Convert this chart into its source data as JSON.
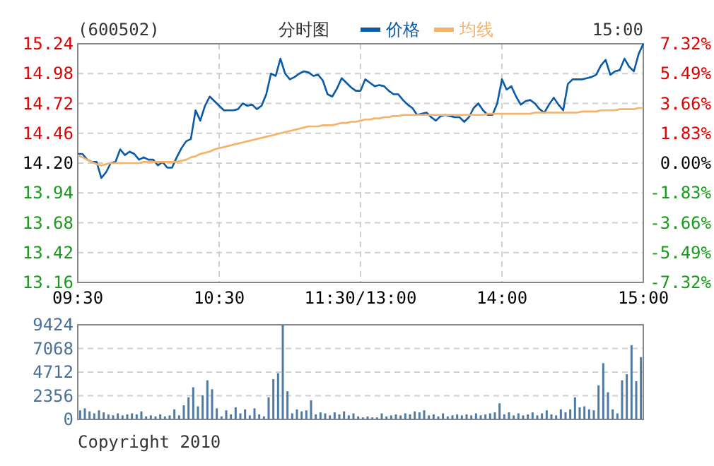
{
  "chart_data": [
    {
      "type": "line",
      "title": "(600502)",
      "subtitle": "分时图",
      "annotations": [
        "15:00"
      ],
      "legend": "top",
      "grid": true,
      "categories": [
        "09:30",
        null,
        null,
        null,
        null,
        null,
        null,
        null,
        null,
        null,
        null,
        null,
        null,
        null,
        null,
        null,
        null,
        null,
        null,
        null,
        null,
        null,
        null,
        null,
        null,
        null,
        null,
        null,
        null,
        null,
        "10:30",
        null,
        null,
        null,
        null,
        null,
        null,
        null,
        null,
        null,
        null,
        null,
        null,
        null,
        null,
        null,
        null,
        null,
        null,
        null,
        null,
        null,
        null,
        null,
        null,
        null,
        null,
        null,
        null,
        null,
        "11:30/13:00",
        null,
        null,
        null,
        null,
        null,
        null,
        null,
        null,
        null,
        null,
        null,
        null,
        null,
        null,
        null,
        null,
        null,
        null,
        null,
        null,
        null,
        null,
        null,
        null,
        null,
        null,
        null,
        null,
        null,
        "14:00",
        null,
        null,
        null,
        null,
        null,
        null,
        null,
        null,
        null,
        null,
        null,
        null,
        null,
        null,
        null,
        null,
        null,
        null,
        null,
        null,
        null,
        null,
        null,
        null,
        null,
        null,
        null,
        null,
        null,
        "15:00"
      ],
      "ylim": [
        13.16,
        15.24
      ],
      "yticks": [
        15.24,
        14.98,
        14.72,
        14.46,
        {
          "value": 14.2,
          "label": "14.20"
        },
        13.94,
        13.68,
        13.42,
        13.16
      ],
      "y2lim": [
        -7.32,
        7.32
      ],
      "y2ticks": [
        {
          "value": 7.32,
          "label": "7.32%"
        },
        {
          "value": 5.49,
          "label": "5.49%"
        },
        {
          "value": 3.66,
          "label": "3.66%"
        },
        {
          "value": 1.83,
          "label": "1.83%"
        },
        {
          "value": 0,
          "label": "0.00%"
        },
        {
          "value": -1.83,
          "label": "-1.83%"
        },
        {
          "value": -3.66,
          "label": "-3.66%"
        },
        {
          "value": -5.49,
          "label": "-5.49%"
        },
        {
          "value": -7.32,
          "label": "-7.32%"
        }
      ],
      "series": [
        {
          "name": "价格",
          "color": "#0a5aa8",
          "values": [
            14.28,
            14.28,
            14.23,
            14.21,
            14.21,
            14.07,
            14.12,
            14.2,
            14.21,
            14.32,
            14.27,
            14.3,
            14.28,
            14.23,
            14.25,
            14.23,
            14.23,
            14.18,
            14.21,
            14.16,
            14.16,
            14.25,
            14.33,
            14.39,
            14.41,
            14.66,
            14.57,
            14.7,
            14.78,
            14.74,
            14.7,
            14.66,
            14.66,
            14.66,
            14.67,
            14.72,
            14.7,
            14.71,
            14.67,
            14.7,
            14.8,
            14.98,
            14.96,
            15.11,
            14.98,
            14.93,
            14.95,
            14.98,
            15.0,
            14.99,
            14.96,
            14.97,
            14.92,
            14.8,
            14.78,
            14.85,
            14.94,
            14.9,
            14.86,
            14.83,
            14.83,
            14.93,
            14.9,
            14.87,
            14.88,
            14.87,
            14.83,
            14.8,
            14.8,
            14.75,
            14.71,
            14.68,
            14.62,
            14.63,
            14.64,
            14.6,
            14.57,
            14.61,
            14.62,
            14.61,
            14.6,
            14.6,
            14.56,
            14.6,
            14.68,
            14.72,
            14.66,
            14.62,
            14.62,
            14.72,
            14.93,
            14.84,
            14.87,
            14.78,
            14.71,
            14.74,
            14.75,
            14.72,
            14.67,
            14.64,
            14.71,
            14.77,
            14.71,
            14.66,
            14.89,
            14.93,
            14.93,
            14.93,
            14.94,
            14.95,
            14.97,
            15.05,
            15.1,
            14.97,
            15.0,
            15.01,
            15.11,
            15.04,
            15.0,
            15.15,
            15.24
          ]
        },
        {
          "name": "均线",
          "color": "#f5b26b",
          "values": [
            14.27,
            14.25,
            14.23,
            14.21,
            14.19,
            14.18,
            14.19,
            14.2,
            14.2,
            14.2,
            14.2,
            14.2,
            14.2,
            14.2,
            14.21,
            14.21,
            14.21,
            14.21,
            14.21,
            14.21,
            14.21,
            14.21,
            14.22,
            14.23,
            14.25,
            14.26,
            14.28,
            14.29,
            14.3,
            14.32,
            14.33,
            14.34,
            14.35,
            14.36,
            14.37,
            14.38,
            14.39,
            14.4,
            14.41,
            14.42,
            14.43,
            14.44,
            14.45,
            14.46,
            14.47,
            14.48,
            14.49,
            14.5,
            14.51,
            14.52,
            14.52,
            14.52,
            14.53,
            14.53,
            14.53,
            14.54,
            14.55,
            14.55,
            14.56,
            14.56,
            14.57,
            14.58,
            14.58,
            14.59,
            14.59,
            14.6,
            14.6,
            14.61,
            14.61,
            14.62,
            14.62,
            14.62,
            14.62,
            14.62,
            14.62,
            14.62,
            14.62,
            14.62,
            14.62,
            14.62,
            14.62,
            14.62,
            14.62,
            14.62,
            14.62,
            14.62,
            14.62,
            14.63,
            14.63,
            14.63,
            14.63,
            14.63,
            14.63,
            14.63,
            14.63,
            14.63,
            14.63,
            14.64,
            14.64,
            14.64,
            14.64,
            14.64,
            14.64,
            14.64,
            14.64,
            14.64,
            14.64,
            14.65,
            14.65,
            14.65,
            14.65,
            14.66,
            14.66,
            14.66,
            14.66,
            14.67,
            14.67,
            14.67,
            14.67,
            14.68,
            14.68
          ]
        }
      ]
    },
    {
      "type": "bar",
      "annotations": [
        "Copyright 2010"
      ],
      "grid": "y",
      "tick_labels": "y",
      "color": "#4f7aa3",
      "categories": [
        null,
        null,
        null,
        null,
        null,
        null,
        null,
        null,
        null,
        null,
        null,
        null,
        null,
        null,
        null,
        null,
        null,
        null,
        null,
        null,
        null,
        null,
        null,
        null,
        null,
        null,
        null,
        null,
        null,
        null,
        null,
        null,
        null,
        null,
        null,
        null,
        null,
        null,
        null,
        null,
        null,
        null,
        null,
        null,
        null,
        null,
        null,
        null,
        null,
        null,
        null,
        null,
        null,
        null,
        null,
        null,
        null,
        null,
        null,
        null,
        null,
        null,
        null,
        null,
        null,
        null,
        null,
        null,
        null,
        null,
        null,
        null,
        null,
        null,
        null,
        null,
        null,
        null,
        null,
        null,
        null,
        null,
        null,
        null,
        null,
        null,
        null,
        null,
        null,
        null,
        null,
        null,
        null,
        null,
        null,
        null,
        null,
        null,
        null,
        null,
        null,
        null,
        null,
        null,
        null,
        null,
        null,
        null,
        null,
        null,
        null,
        null,
        null,
        null,
        null,
        null,
        null,
        null,
        null,
        null
      ],
      "ylim": [
        0,
        9424
      ],
      "yticks": [
        0,
        2356,
        4712,
        7068,
        9424
      ],
      "values": [
        900,
        1100,
        800,
        600,
        900,
        700,
        500,
        400,
        600,
        400,
        500,
        600,
        500,
        800,
        300,
        400,
        300,
        500,
        300,
        400,
        1000,
        400,
        1400,
        2200,
        3200,
        1300,
        2400,
        3900,
        3000,
        1100,
        300,
        900,
        500,
        1200,
        600,
        1000,
        400,
        1100,
        500,
        300,
        2200,
        4000,
        4600,
        9424,
        2800,
        600,
        1000,
        800,
        900,
        1900,
        500,
        700,
        600,
        400,
        700,
        500,
        800,
        400,
        600,
        300,
        200,
        300,
        200,
        200,
        600,
        300,
        400,
        500,
        400,
        600,
        500,
        800,
        700,
        900,
        400,
        500,
        300,
        600,
        300,
        400,
        500,
        400,
        500,
        400,
        600,
        400,
        500,
        600,
        700,
        1600,
        500,
        700,
        400,
        600,
        400,
        500,
        700,
        400,
        600,
        900,
        500,
        400,
        1000,
        700,
        1000,
        2200,
        1200,
        1300,
        1000,
        900,
        3400,
        5600,
        2700,
        1000,
        600,
        3900,
        4500,
        7400,
        3800,
        6200
      ]
    }
  ]
}
